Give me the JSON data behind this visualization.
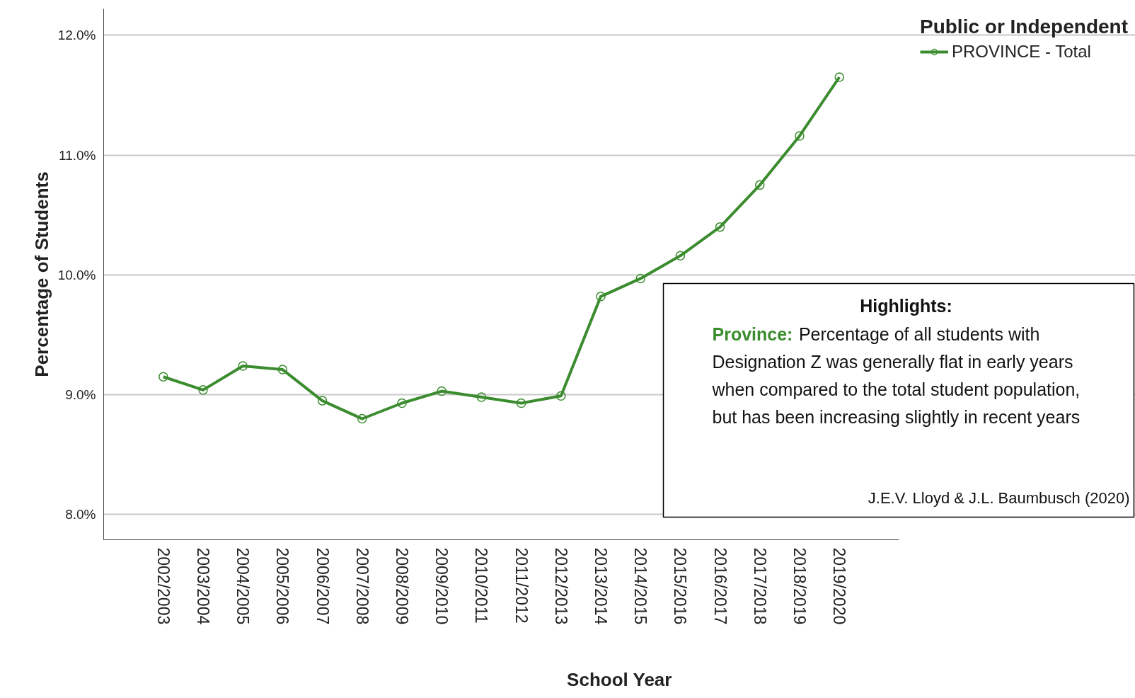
{
  "chart_data": {
    "type": "line",
    "xlabel": "School Year",
    "ylabel": "Percentage of Students",
    "legend_title": "Public or Independent",
    "categories": [
      "2002/2003",
      "2003/2004",
      "2004/2005",
      "2005/2006",
      "2006/2007",
      "2007/2008",
      "2008/2009",
      "2009/2010",
      "2010/2011",
      "2011/2012",
      "2012/2013",
      "2013/2014",
      "2014/2015",
      "2015/2016",
      "2016/2017",
      "2017/2018",
      "2018/2019",
      "2019/2020"
    ],
    "series": [
      {
        "name": "PROVINCE - Total",
        "color": "#3b8c2e",
        "values": [
          9.15,
          9.04,
          9.24,
          9.21,
          8.95,
          8.8,
          8.93,
          9.03,
          8.98,
          8.93,
          8.99,
          9.82,
          9.97,
          10.16,
          10.4,
          10.75,
          11.16,
          11.65
        ]
      }
    ],
    "ylim": [
      7.79,
      12.22
    ],
    "yticks": [
      {
        "value": 8,
        "label": "8.0%"
      },
      {
        "value": 9,
        "label": "9.0%"
      },
      {
        "value": 10,
        "label": "10.0%"
      },
      {
        "value": 11,
        "label": "11.0%"
      },
      {
        "value": 12,
        "label": "12.0%"
      }
    ],
    "grid": "y",
    "legend": "right",
    "marker": "circle",
    "line_style": "solid",
    "annotations": [
      "Highlights:",
      "Province: Percentage of all students with Designation Z was generally flat in early years when compared to the total student population, but has been increasing slightly in recent years",
      "J.E.V. Lloyd & J.L. Baumbusch (2020)"
    ]
  }
}
